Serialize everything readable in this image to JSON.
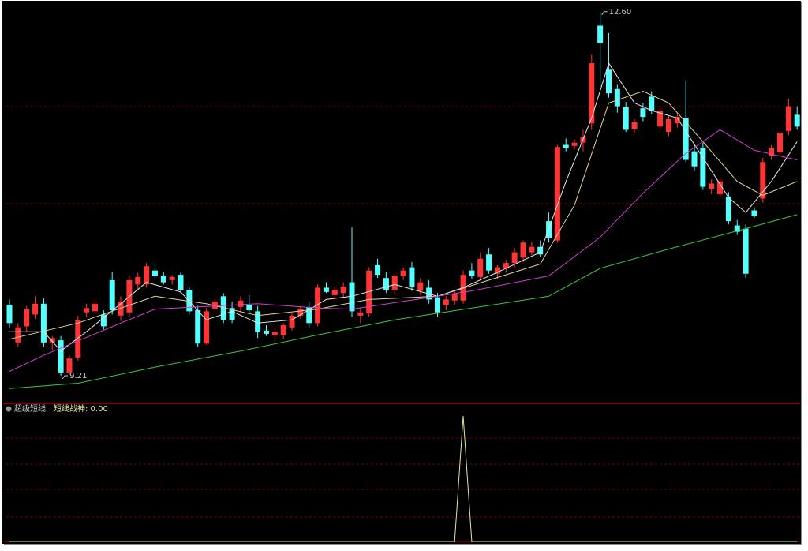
{
  "chart_data": {
    "type": "candlestick",
    "up_color": "#ff3535",
    "down_color": "#54ffff",
    "ylim": [
      8.96,
      12.65
    ],
    "candles": [
      [
        9.87,
        9.92,
        9.66,
        9.7
      ],
      [
        9.52,
        9.7,
        9.48,
        9.66
      ],
      [
        9.67,
        9.86,
        9.62,
        9.83
      ],
      [
        9.78,
        9.95,
        9.74,
        9.88
      ],
      [
        9.88,
        9.93,
        9.48,
        9.52
      ],
      [
        9.52,
        9.58,
        9.45,
        9.56
      ],
      [
        9.54,
        9.58,
        9.21,
        9.24
      ],
      [
        9.24,
        9.4,
        9.22,
        9.37
      ],
      [
        9.38,
        9.77,
        9.35,
        9.73
      ],
      [
        9.8,
        9.88,
        9.76,
        9.84
      ],
      [
        9.81,
        9.92,
        9.78,
        9.88
      ],
      [
        9.78,
        9.82,
        9.64,
        9.67
      ],
      [
        10.1,
        10.18,
        9.78,
        9.82
      ],
      [
        9.77,
        9.95,
        9.72,
        9.9
      ],
      [
        9.8,
        10.14,
        9.76,
        10.1
      ],
      [
        10.06,
        10.17,
        10.02,
        10.13
      ],
      [
        10.06,
        10.26,
        10.03,
        10.23
      ],
      [
        10.19,
        10.26,
        10.12,
        10.14
      ],
      [
        10.14,
        10.18,
        10.06,
        10.08
      ],
      [
        10.1,
        10.15,
        10.06,
        10.13
      ],
      [
        10.15,
        10.17,
        9.98,
        10.01
      ],
      [
        10.01,
        10.04,
        9.78,
        9.81
      ],
      [
        9.82,
        9.86,
        9.48,
        9.51
      ],
      [
        9.51,
        9.84,
        9.5,
        9.81
      ],
      [
        9.83,
        9.94,
        9.8,
        9.9
      ],
      [
        9.95,
        9.98,
        9.7,
        9.73
      ],
      [
        9.84,
        9.9,
        9.7,
        9.73
      ],
      [
        9.85,
        9.95,
        9.8,
        9.91
      ],
      [
        9.87,
        9.96,
        9.8,
        9.82
      ],
      [
        9.81,
        9.86,
        9.56,
        9.62
      ],
      [
        9.63,
        9.68,
        9.58,
        9.6
      ],
      [
        9.59,
        9.66,
        9.52,
        9.62
      ],
      [
        9.59,
        9.7,
        9.55,
        9.68
      ],
      [
        9.66,
        9.79,
        9.63,
        9.77
      ],
      [
        9.77,
        9.86,
        9.74,
        9.83
      ],
      [
        9.85,
        9.9,
        9.66,
        9.7
      ],
      [
        9.7,
        10.06,
        9.67,
        10.03
      ],
      [
        10.03,
        10.08,
        9.98,
        9.99
      ],
      [
        9.96,
        10.04,
        9.93,
        10.01
      ],
      [
        9.98,
        10.08,
        9.94,
        10.04
      ],
      [
        10.08,
        10.59,
        9.76,
        9.81
      ],
      [
        9.77,
        9.84,
        9.7,
        9.8
      ],
      [
        9.79,
        10.22,
        9.76,
        10.19
      ],
      [
        10.24,
        10.3,
        10.12,
        10.15
      ],
      [
        10.12,
        10.18,
        9.98,
        10.01
      ],
      [
        10.01,
        10.16,
        9.97,
        10.14
      ],
      [
        10.14,
        10.22,
        10.1,
        10.19
      ],
      [
        10.22,
        10.27,
        10.0,
        10.04
      ],
      [
        10.0,
        10.12,
        9.96,
        10.08
      ],
      [
        10.03,
        10.1,
        9.88,
        9.92
      ],
      [
        9.94,
        9.98,
        9.76,
        9.8
      ],
      [
        9.87,
        9.95,
        9.82,
        9.92
      ],
      [
        9.91,
        10.0,
        9.87,
        9.97
      ],
      [
        9.91,
        10.19,
        9.88,
        10.15
      ],
      [
        10.19,
        10.26,
        10.11,
        10.14
      ],
      [
        10.13,
        10.36,
        10.1,
        10.3
      ],
      [
        10.34,
        10.4,
        10.16,
        10.19
      ],
      [
        10.16,
        10.24,
        10.11,
        10.22
      ],
      [
        10.21,
        10.29,
        10.17,
        10.26
      ],
      [
        10.26,
        10.4,
        10.22,
        10.36
      ],
      [
        10.31,
        10.47,
        10.27,
        10.45
      ],
      [
        10.36,
        10.46,
        10.33,
        10.41
      ],
      [
        10.41,
        10.47,
        10.32,
        10.34
      ],
      [
        10.65,
        10.73,
        10.45,
        10.49
      ],
      [
        10.47,
        11.36,
        10.45,
        11.34
      ],
      [
        11.36,
        11.42,
        11.3,
        11.33
      ],
      [
        11.35,
        11.41,
        11.32,
        11.38
      ],
      [
        11.38,
        11.5,
        11.3,
        11.43
      ],
      [
        11.56,
        12.2,
        11.5,
        12.12
      ],
      [
        12.47,
        12.6,
        11.9,
        12.31
      ],
      [
        12.06,
        12.4,
        11.8,
        11.84
      ],
      [
        11.88,
        11.92,
        11.66,
        11.72
      ],
      [
        11.71,
        11.76,
        11.48,
        11.5
      ],
      [
        11.51,
        11.6,
        11.47,
        11.57
      ],
      [
        11.7,
        11.75,
        11.58,
        11.62
      ],
      [
        11.81,
        11.86,
        11.65,
        11.68
      ],
      [
        11.53,
        11.72,
        11.5,
        11.68
      ],
      [
        11.48,
        11.63,
        11.44,
        11.6
      ],
      [
        11.56,
        11.66,
        11.52,
        11.62
      ],
      [
        11.61,
        11.95,
        11.2,
        11.22
      ],
      [
        11.3,
        11.36,
        11.12,
        11.16
      ],
      [
        11.33,
        11.38,
        10.94,
        10.97
      ],
      [
        10.95,
        11.04,
        10.9,
        11.0
      ],
      [
        10.9,
        11.05,
        10.86,
        11.02
      ],
      [
        10.88,
        10.92,
        10.62,
        10.65
      ],
      [
        10.61,
        10.66,
        10.52,
        10.55
      ],
      [
        10.58,
        10.62,
        10.12,
        10.16
      ],
      [
        10.75,
        10.78,
        10.68,
        10.7
      ],
      [
        10.86,
        11.24,
        10.82,
        11.2
      ],
      [
        11.26,
        11.36,
        11.22,
        11.33
      ],
      [
        11.29,
        11.49,
        11.25,
        11.47
      ],
      [
        11.49,
        11.79,
        11.45,
        11.72
      ],
      [
        11.64,
        11.72,
        11.5,
        11.53
      ]
    ],
    "lines": [
      {
        "color": "#e8e8e8",
        "index": [
          0,
          4,
          6,
          9,
          13,
          16,
          20,
          23,
          26,
          29,
          33,
          37,
          40,
          45,
          50,
          53,
          58,
          62,
          65,
          68,
          70,
          73,
          75,
          78,
          81,
          84,
          86,
          89,
          92
        ],
        "values": [
          9.62,
          9.62,
          9.44,
          9.62,
          9.88,
          10.08,
          9.99,
          9.73,
          9.81,
          9.7,
          9.73,
          9.92,
          9.95,
          10.06,
          9.95,
          10.03,
          10.21,
          10.36,
          11.02,
          11.61,
          12.12,
          11.75,
          11.68,
          11.61,
          11.24,
          10.87,
          10.73,
          11.02,
          11.39
        ]
      },
      {
        "color": "#e6d3a0",
        "index": [
          0,
          8,
          17,
          23,
          29,
          36,
          42,
          50,
          56,
          62,
          66,
          70,
          74,
          77,
          81,
          85,
          88,
          92
        ],
        "values": [
          9.55,
          9.7,
          9.95,
          9.88,
          9.77,
          9.83,
          9.92,
          9.95,
          10.1,
          10.25,
          10.8,
          11.75,
          11.86,
          11.75,
          11.39,
          11.02,
          10.89,
          11.02
        ]
      },
      {
        "color": "#d23cd2",
        "index": [
          0,
          4,
          13,
          17,
          29,
          36,
          40,
          50,
          54,
          63,
          69,
          74,
          79,
          83,
          87,
          92
        ],
        "values": [
          9.25,
          9.4,
          9.7,
          9.83,
          9.88,
          9.84,
          9.83,
          9.95,
          10.0,
          10.14,
          10.5,
          10.91,
          11.28,
          11.5,
          11.31,
          11.22
        ]
      },
      {
        "color": "#3cc83c",
        "index": [
          0,
          8,
          17,
          27,
          36,
          45,
          54,
          63,
          69,
          77,
          86,
          92
        ],
        "values": [
          9.09,
          9.14,
          9.29,
          9.44,
          9.59,
          9.73,
          9.84,
          9.95,
          10.21,
          10.39,
          10.58,
          10.71
        ]
      }
    ],
    "annotations": [
      {
        "label": "12.60",
        "index": 69,
        "value": 12.6
      },
      {
        "label": "9.21",
        "index": 6,
        "value": 9.21
      }
    ],
    "indicator": {
      "title": "超级短线",
      "label": "短线战神: 0.00",
      "color": "#e6e6a0",
      "ylim": [
        0,
        1
      ],
      "index": [
        0,
        52,
        53,
        54,
        92
      ],
      "values": [
        0,
        0,
        1,
        0,
        0
      ]
    }
  }
}
